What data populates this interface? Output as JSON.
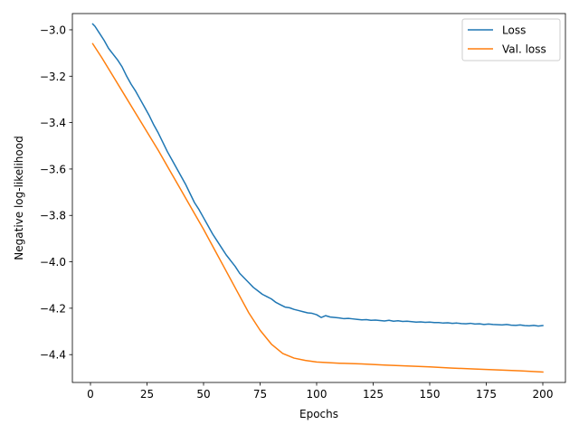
{
  "chart_data": {
    "type": "line",
    "title": "",
    "xlabel": "Epochs",
    "ylabel": "Negative log-likelihood",
    "xlim": [
      -8,
      210
    ],
    "ylim": [
      -4.52,
      -2.93
    ],
    "xticks": [
      0,
      25,
      50,
      75,
      100,
      125,
      150,
      175,
      200
    ],
    "xtick_labels": [
      "0",
      "25",
      "50",
      "75",
      "100",
      "125",
      "150",
      "175",
      "200"
    ],
    "yticks": [
      -3.0,
      -3.2,
      -3.4,
      -3.6,
      -3.8,
      -4.0,
      -4.2,
      -4.4
    ],
    "ytick_labels": [
      "−3.0",
      "−3.2",
      "−3.4",
      "−3.6",
      "−3.8",
      "−4.0",
      "−4.2",
      "−4.4"
    ],
    "grid": false,
    "legend_position": "top-right",
    "series": [
      {
        "name": "Loss",
        "color": "#1f77b4",
        "x": [
          1,
          2,
          4,
          6,
          8,
          10,
          12,
          14,
          16,
          18,
          20,
          22,
          24,
          26,
          28,
          30,
          32,
          34,
          36,
          38,
          40,
          42,
          44,
          46,
          48,
          50,
          52,
          54,
          56,
          58,
          60,
          62,
          64,
          66,
          68,
          70,
          72,
          74,
          76,
          78,
          80,
          82,
          84,
          86,
          88,
          90,
          92,
          94,
          96,
          98,
          100,
          102,
          104,
          106,
          108,
          110,
          112,
          114,
          116,
          118,
          120,
          122,
          124,
          126,
          128,
          130,
          132,
          134,
          136,
          138,
          140,
          142,
          144,
          146,
          148,
          150,
          152,
          154,
          156,
          158,
          160,
          162,
          164,
          166,
          168,
          170,
          172,
          174,
          176,
          178,
          180,
          182,
          184,
          186,
          188,
          190,
          192,
          194,
          196,
          198,
          200
        ],
        "y": [
          -2.975,
          -2.985,
          -3.015,
          -3.045,
          -3.08,
          -3.105,
          -3.13,
          -3.16,
          -3.2,
          -3.235,
          -3.265,
          -3.3,
          -3.335,
          -3.37,
          -3.41,
          -3.445,
          -3.485,
          -3.525,
          -3.56,
          -3.595,
          -3.63,
          -3.665,
          -3.705,
          -3.745,
          -3.775,
          -3.81,
          -3.845,
          -3.88,
          -3.91,
          -3.94,
          -3.97,
          -3.995,
          -4.02,
          -4.05,
          -4.07,
          -4.09,
          -4.11,
          -4.125,
          -4.14,
          -4.15,
          -4.16,
          -4.175,
          -4.185,
          -4.195,
          -4.198,
          -4.205,
          -4.21,
          -4.215,
          -4.22,
          -4.222,
          -4.228,
          -4.24,
          -4.232,
          -4.238,
          -4.24,
          -4.242,
          -4.245,
          -4.244,
          -4.246,
          -4.248,
          -4.25,
          -4.249,
          -4.252,
          -4.251,
          -4.253,
          -4.255,
          -4.252,
          -4.256,
          -4.254,
          -4.257,
          -4.256,
          -4.258,
          -4.26,
          -4.259,
          -4.261,
          -4.26,
          -4.262,
          -4.262,
          -4.264,
          -4.263,
          -4.265,
          -4.264,
          -4.266,
          -4.267,
          -4.265,
          -4.268,
          -4.267,
          -4.27,
          -4.268,
          -4.27,
          -4.271,
          -4.272,
          -4.27,
          -4.273,
          -4.274,
          -4.272,
          -4.275,
          -4.276,
          -4.274,
          -4.277,
          -4.275
        ]
      },
      {
        "name": "Val. loss",
        "color": "#ff7f0e",
        "x": [
          1,
          5,
          10,
          15,
          20,
          25,
          30,
          35,
          40,
          45,
          50,
          55,
          60,
          65,
          70,
          75,
          80,
          85,
          90,
          95,
          100,
          110,
          120,
          130,
          140,
          150,
          160,
          170,
          180,
          190,
          200
        ],
        "y": [
          -3.06,
          -3.12,
          -3.2,
          -3.28,
          -3.36,
          -3.44,
          -3.52,
          -3.605,
          -3.69,
          -3.775,
          -3.86,
          -3.95,
          -4.04,
          -4.13,
          -4.22,
          -4.295,
          -4.355,
          -4.395,
          -4.415,
          -4.425,
          -4.432,
          -4.437,
          -4.44,
          -4.445,
          -4.449,
          -4.453,
          -4.458,
          -4.462,
          -4.466,
          -4.47,
          -4.475
        ]
      }
    ]
  }
}
